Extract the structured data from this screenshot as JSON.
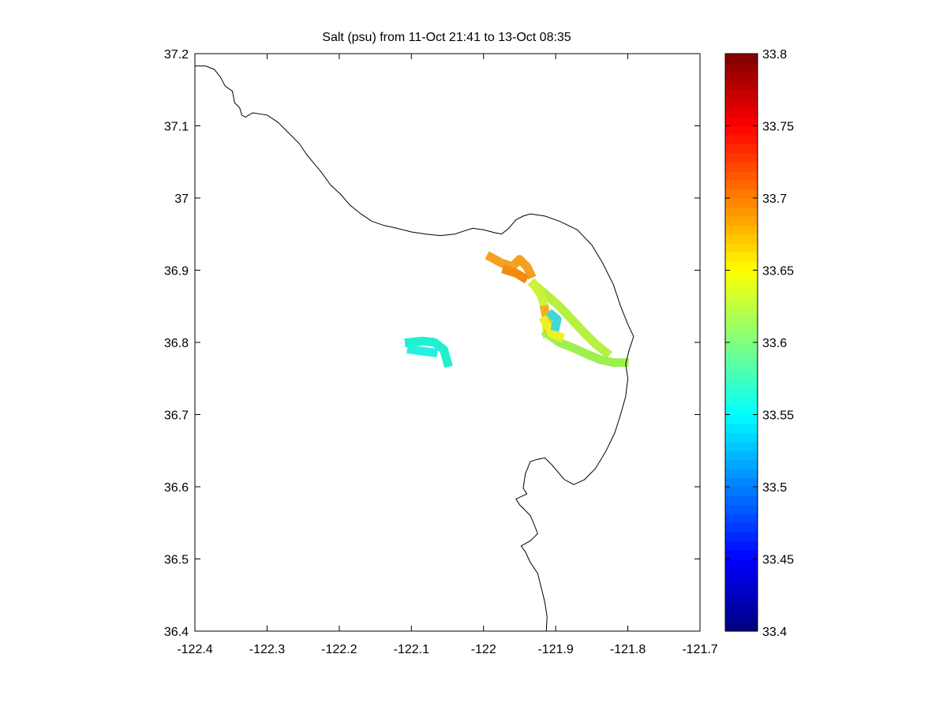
{
  "title": "Salt (psu) from 11-Oct 21:41 to 13-Oct 08:35",
  "map": {
    "xlim": [
      -122.4,
      -121.7
    ],
    "ylim": [
      36.4,
      37.2
    ],
    "xticks": [
      "-122.4",
      "-122.3",
      "-122.2",
      "-122.1",
      "-122",
      "-121.9",
      "-121.8",
      "-121.7"
    ],
    "yticks": [
      "36.4",
      "36.5",
      "36.6",
      "36.7",
      "36.8",
      "36.9",
      "37",
      "37.1",
      "37.2"
    ],
    "coastline": [
      [
        -122.4,
        37.183
      ],
      [
        -122.385,
        37.183
      ],
      [
        -122.373,
        37.178
      ],
      [
        -122.365,
        37.168
      ],
      [
        -122.358,
        37.155
      ],
      [
        -122.348,
        37.148
      ],
      [
        -122.345,
        37.132
      ],
      [
        -122.338,
        37.125
      ],
      [
        -122.335,
        37.115
      ],
      [
        -122.33,
        37.112
      ],
      [
        -122.32,
        37.118
      ],
      [
        -122.3,
        37.115
      ],
      [
        -122.285,
        37.105
      ],
      [
        -122.27,
        37.09
      ],
      [
        -122.255,
        37.075
      ],
      [
        -122.245,
        37.06
      ],
      [
        -122.235,
        37.048
      ],
      [
        -122.225,
        37.036
      ],
      [
        -122.212,
        37.018
      ],
      [
        -122.198,
        37.005
      ],
      [
        -122.185,
        36.99
      ],
      [
        -122.17,
        36.978
      ],
      [
        -122.155,
        36.968
      ],
      [
        -122.138,
        36.962
      ],
      [
        -122.12,
        36.958
      ],
      [
        -122.1,
        36.953
      ],
      [
        -122.08,
        36.95
      ],
      [
        -122.06,
        36.948
      ],
      [
        -122.04,
        36.95
      ],
      [
        -122.025,
        36.955
      ],
      [
        -122.015,
        36.958
      ],
      [
        -122.0,
        36.956
      ],
      [
        -121.985,
        36.952
      ],
      [
        -121.975,
        36.95
      ],
      [
        -121.965,
        36.958
      ],
      [
        -121.955,
        36.97
      ],
      [
        -121.945,
        36.975
      ],
      [
        -121.935,
        36.978
      ],
      [
        -121.915,
        36.975
      ],
      [
        -121.895,
        36.968
      ],
      [
        -121.87,
        36.956
      ],
      [
        -121.85,
        36.935
      ],
      [
        -121.835,
        36.91
      ],
      [
        -121.82,
        36.88
      ],
      [
        -121.81,
        36.85
      ],
      [
        -121.8,
        36.825
      ],
      [
        -121.792,
        36.808
      ],
      [
        -121.798,
        36.79
      ],
      [
        -121.803,
        36.77
      ],
      [
        -121.8,
        36.75
      ],
      [
        -121.803,
        36.725
      ],
      [
        -121.81,
        36.7
      ],
      [
        -121.818,
        36.675
      ],
      [
        -121.83,
        36.65
      ],
      [
        -121.845,
        36.625
      ],
      [
        -121.86,
        36.61
      ],
      [
        -121.875,
        36.603
      ],
      [
        -121.888,
        36.61
      ],
      [
        -121.905,
        36.63
      ],
      [
        -121.915,
        36.64
      ],
      [
        -121.925,
        36.638
      ],
      [
        -121.935,
        36.635
      ],
      [
        -121.942,
        36.618
      ],
      [
        -121.945,
        36.598
      ],
      [
        -121.94,
        36.59
      ],
      [
        -121.955,
        36.583
      ],
      [
        -121.95,
        36.575
      ],
      [
        -121.945,
        36.57
      ],
      [
        -121.935,
        36.56
      ],
      [
        -121.93,
        36.548
      ],
      [
        -121.925,
        36.535
      ],
      [
        -121.935,
        36.525
      ],
      [
        -121.948,
        36.518
      ],
      [
        -121.942,
        36.51
      ],
      [
        -121.935,
        36.495
      ],
      [
        -121.925,
        36.48
      ],
      [
        -121.92,
        36.46
      ],
      [
        -121.915,
        36.44
      ],
      [
        -121.912,
        36.42
      ],
      [
        -121.913,
        36.4
      ]
    ]
  },
  "track_segments": [
    {
      "name": "offshore-hook",
      "color": "#1ff0d0",
      "points": [
        [
          -122.103,
          36.8
        ],
        [
          -122.085,
          36.802
        ],
        [
          -122.068,
          36.8
        ],
        [
          -122.055,
          36.79
        ],
        [
          -122.05,
          36.772
        ]
      ]
    },
    {
      "name": "offshore-bar",
      "color": "#28f0e0",
      "points": [
        [
          -122.1,
          36.79
        ],
        [
          -122.085,
          36.788
        ],
        [
          -122.07,
          36.786
        ]
      ]
    },
    {
      "name": "north-cluster",
      "color": "#f5a020",
      "points": [
        [
          -121.99,
          36.918
        ],
        [
          -121.975,
          36.91
        ],
        [
          -121.96,
          36.905
        ],
        [
          -121.95,
          36.915
        ],
        [
          -121.94,
          36.905
        ],
        [
          -121.935,
          36.895
        ]
      ]
    },
    {
      "name": "north-cluster-inner",
      "color": "#f08c10",
      "points": [
        [
          -121.968,
          36.9
        ],
        [
          -121.955,
          36.896
        ],
        [
          -121.945,
          36.89
        ]
      ]
    },
    {
      "name": "transect-east",
      "color": "#b6f040",
      "points": [
        [
          -121.93,
          36.88
        ],
        [
          -121.912,
          36.865
        ],
        [
          -121.895,
          36.85
        ],
        [
          -121.878,
          36.832
        ],
        [
          -121.862,
          36.815
        ],
        [
          -121.845,
          36.798
        ],
        [
          -121.83,
          36.786
        ]
      ]
    },
    {
      "name": "transect-west",
      "color": "#cdf23a",
      "points": [
        [
          -121.93,
          36.88
        ],
        [
          -121.92,
          36.865
        ],
        [
          -121.915,
          36.848
        ],
        [
          -121.913,
          36.83
        ],
        [
          -121.912,
          36.812
        ]
      ]
    },
    {
      "name": "return-leg",
      "color": "#9ef050",
      "points": [
        [
          -121.912,
          36.812
        ],
        [
          -121.895,
          36.8
        ],
        [
          -121.875,
          36.792
        ],
        [
          -121.855,
          36.783
        ],
        [
          -121.838,
          36.776
        ],
        [
          -121.82,
          36.772
        ],
        [
          -121.805,
          36.772
        ]
      ]
    },
    {
      "name": "mid-orange",
      "color": "#f7b020",
      "points": [
        [
          -121.915,
          36.845
        ],
        [
          -121.912,
          36.832
        ],
        [
          -121.91,
          36.82
        ]
      ]
    },
    {
      "name": "mid-yellow",
      "color": "#eef020",
      "points": [
        [
          -121.915,
          36.83
        ],
        [
          -121.905,
          36.812
        ],
        [
          -121.895,
          36.808
        ]
      ]
    },
    {
      "name": "cyan-blob",
      "color": "#40d8d8",
      "points": [
        [
          -121.905,
          36.838
        ],
        [
          -121.898,
          36.832
        ],
        [
          -121.9,
          36.822
        ]
      ]
    }
  ],
  "colorbar": {
    "min": 33.4,
    "max": 33.8,
    "ticks": [
      "33.4",
      "33.45",
      "33.5",
      "33.55",
      "33.6",
      "33.65",
      "33.7",
      "33.75",
      "33.8"
    ],
    "colormap": "jet"
  }
}
